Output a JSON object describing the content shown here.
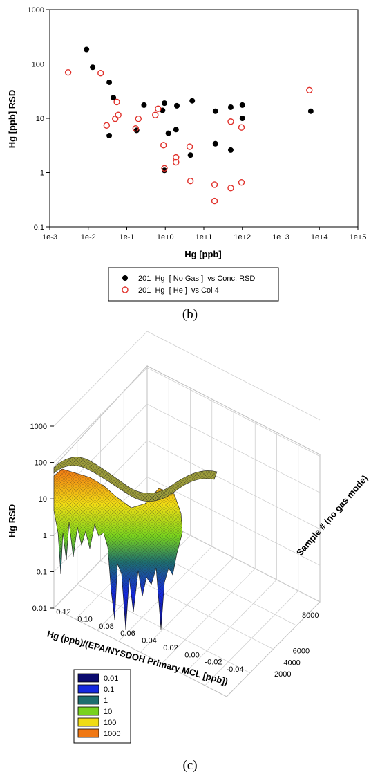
{
  "chart_data": [
    {
      "panel": "(b)",
      "type": "scatter",
      "xlabel": "Hg [ppb]",
      "ylabel": "Hg [ppb] RSD",
      "x_scale": "log",
      "y_scale": "log",
      "xlim": [
        0.001,
        100000
      ],
      "ylim": [
        0.1,
        1000
      ],
      "x_ticks": [
        "1e-3",
        "1e-2",
        "1e-1",
        "1e+0",
        "1e+1",
        "1e+2",
        "1e+3",
        "1e+4",
        "1e+5"
      ],
      "y_ticks": [
        "0.1",
        "1",
        "10",
        "100",
        "1000"
      ],
      "grid": false,
      "legend_position": "below",
      "series": [
        {
          "name": "201  Hg  [ No Gas ]  vs Conc. RSD",
          "marker": "filled-circle",
          "color": "#000000",
          "points": [
            [
              0.009,
              185
            ],
            [
              0.013,
              87
            ],
            [
              0.035,
              46
            ],
            [
              0.045,
              24
            ],
            [
              0.035,
              4.8
            ],
            [
              0.18,
              6
            ],
            [
              0.28,
              17.5
            ],
            [
              0.85,
              14
            ],
            [
              0.95,
              19
            ],
            [
              0.95,
              1.1
            ],
            [
              1.2,
              5.3
            ],
            [
              1.9,
              6.2
            ],
            [
              2.0,
              17
            ],
            [
              4.5,
              2.1
            ],
            [
              5.0,
              21
            ],
            [
              20,
              13.5
            ],
            [
              20,
              3.4
            ],
            [
              50,
              16
            ],
            [
              50,
              2.6
            ],
            [
              100,
              17.5
            ],
            [
              100,
              10
            ],
            [
              6000,
              13.5
            ]
          ]
        },
        {
          "name": "201  Hg  [ He ]  vs Col 4",
          "marker": "open-circle",
          "color": "#e0302a",
          "points": [
            [
              0.003,
              70
            ],
            [
              0.021,
              68
            ],
            [
              0.03,
              7.4
            ],
            [
              0.05,
              9.8
            ],
            [
              0.055,
              20
            ],
            [
              0.06,
              11.5
            ],
            [
              0.17,
              6.5
            ],
            [
              0.2,
              9.8
            ],
            [
              0.55,
              11.5
            ],
            [
              0.65,
              15
            ],
            [
              0.9,
              3.2
            ],
            [
              0.95,
              1.2
            ],
            [
              1.9,
              1.9
            ],
            [
              1.9,
              1.55
            ],
            [
              4.3,
              3.0
            ],
            [
              4.5,
              0.7
            ],
            [
              19,
              0.6
            ],
            [
              19,
              0.3
            ],
            [
              50,
              8.7
            ],
            [
              50,
              0.52
            ],
            [
              95,
              6.8
            ],
            [
              95,
              0.66
            ],
            [
              5500,
              33
            ]
          ]
        }
      ]
    },
    {
      "panel": "(c)",
      "type": "surface",
      "xlabel": "Hg (ppb)/(EPA/NYSDOH Primary MCL [ppb])",
      "ylabel": "Sample # (no gas mode)",
      "zlabel": "Hg RSD",
      "z_scale": "log",
      "zlim": [
        0.01,
        1000
      ],
      "x_ticks": [
        "0.12",
        "0.10",
        "0.08",
        "0.06",
        "0.04",
        "0.02",
        "0.00",
        "-0.02",
        "-0.04"
      ],
      "y_ticks": [
        "2000",
        "4000",
        "6000",
        "8000"
      ],
      "z_ticks": [
        "0.01",
        "0.1",
        "1",
        "10",
        "100",
        "1000"
      ],
      "grid": true,
      "legend_position": "bottom-left",
      "colormap": [
        {
          "label": "0.01",
          "color": "#0a0a6e"
        },
        {
          "label": "0.1",
          "color": "#1428e0"
        },
        {
          "label": "1",
          "color": "#1e6e6e"
        },
        {
          "label": "10",
          "color": "#78d21e"
        },
        {
          "label": "100",
          "color": "#f0dc14"
        },
        {
          "label": "1000",
          "color": "#f07814"
        }
      ]
    }
  ]
}
